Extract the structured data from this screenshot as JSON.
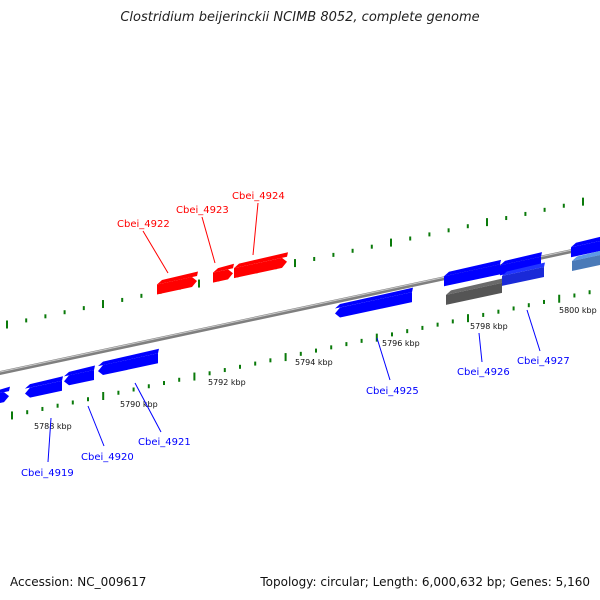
{
  "title": "Clostridium beijerinckii NCIMB 8052, complete genome",
  "footer": {
    "accession": "Accession: NC_009617",
    "summary": "Topology: circular; Length: 6,000,632 bp; Genes: 5,160"
  },
  "colors": {
    "forward_gene": "#ff0000",
    "reverse_gene": "#0000ff",
    "tick": "#0a7a0a",
    "backbone": "#7f7f7f",
    "ruler_label": "#111111"
  },
  "ruler_labels": [
    "5788 kbp",
    "5790 kbp",
    "5792 kbp",
    "5794 kbp",
    "5796 kbp",
    "5798 kbp",
    "5800 kbp"
  ],
  "gene_labels": [
    "Cbei_4919",
    "Cbei_4920",
    "Cbei_4921",
    "Cbei_4922",
    "Cbei_4923",
    "Cbei_4924",
    "Cbei_4925",
    "Cbei_4926",
    "Cbei_4927"
  ]
}
